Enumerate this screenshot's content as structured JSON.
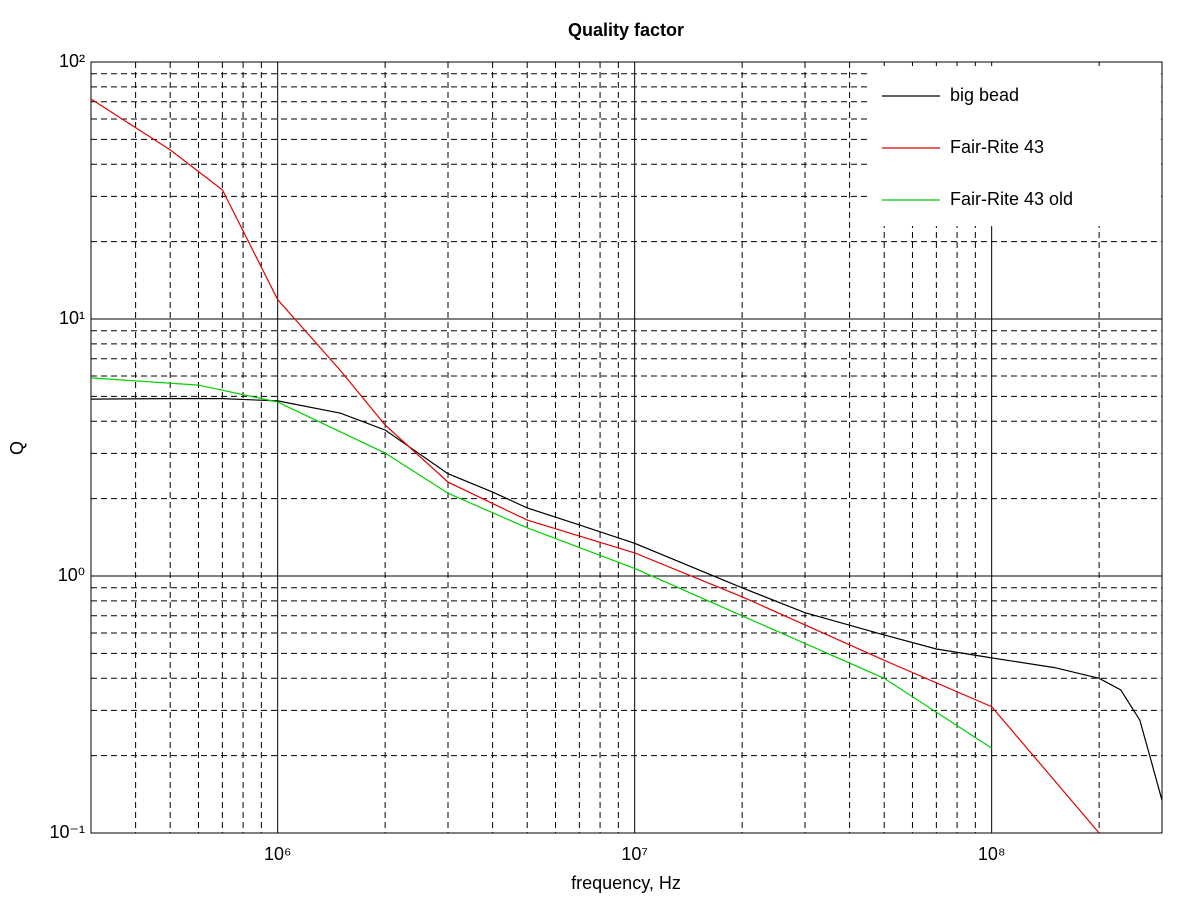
{
  "chart_data": {
    "type": "line",
    "title": "Quality factor",
    "x_label": "frequency, Hz",
    "y_label": "Q",
    "log_x": true,
    "log_y": true,
    "grid": true,
    "legend_position": "upper-right",
    "xlim": [
      300000,
      300000000
    ],
    "ylim": [
      0.1,
      100
    ],
    "xticks": [
      {
        "value": 1000000,
        "label": "10⁶"
      },
      {
        "value": 10000000,
        "label": "10⁷"
      },
      {
        "value": 100000000,
        "label": "10⁸"
      }
    ],
    "yticks": [
      {
        "value": 0.1,
        "label": "10⁻¹"
      },
      {
        "value": 1,
        "label": "10⁰"
      },
      {
        "value": 10,
        "label": "10¹"
      },
      {
        "value": 100,
        "label": "10²"
      }
    ],
    "x_minor_ticks": [
      400000,
      500000,
      600000,
      700000,
      800000,
      900000,
      2000000,
      3000000,
      4000000,
      5000000,
      6000000,
      7000000,
      8000000,
      9000000,
      20000000,
      30000000,
      40000000,
      50000000,
      60000000,
      70000000,
      80000000,
      90000000,
      200000000
    ],
    "y_minor_ticks": [
      0.2,
      0.3,
      0.4,
      0.5,
      0.6,
      0.7,
      0.8,
      0.9,
      2,
      3,
      4,
      5,
      6,
      7,
      8,
      9,
      20,
      30,
      40,
      50,
      60,
      70,
      80,
      90
    ],
    "series": [
      {
        "name": "big bead",
        "color": "#000000",
        "x": [
          300000,
          500000,
          700000,
          1000000,
          1500000,
          2000000,
          3000000,
          4000000,
          5000000,
          7000000,
          10000000,
          20000000,
          30000000,
          50000000,
          70000000,
          100000000,
          150000000,
          200000000,
          230000000,
          260000000,
          280000000,
          300000000
        ],
        "values": [
          4.88,
          4.9,
          4.9,
          4.8,
          4.3,
          3.7,
          2.5,
          2.12,
          1.84,
          1.58,
          1.34,
          0.9,
          0.72,
          0.59,
          0.52,
          0.48,
          0.44,
          0.4,
          0.36,
          0.275,
          0.19,
          0.134
        ]
      },
      {
        "name": "Fair-Rite 43",
        "color": "#e00000",
        "x": [
          300000,
          500000,
          700000,
          1000000,
          1500000,
          2000000,
          3000000,
          5000000,
          10000000,
          20000000,
          50000000,
          100000000,
          200000000
        ],
        "values": [
          71.8,
          45.5,
          31.8,
          11.9,
          6.3,
          3.87,
          2.32,
          1.65,
          1.23,
          0.83,
          0.47,
          0.31,
          0.1
        ]
      },
      {
        "name": "Fair-Rite 43 old",
        "color": "#00d000",
        "x": [
          300000,
          600000,
          1000000,
          2000000,
          3000000,
          5000000,
          10000000,
          20000000,
          50000000,
          100000000
        ],
        "values": [
          5.9,
          5.53,
          4.75,
          3.01,
          2.1,
          1.54,
          1.07,
          0.7,
          0.4,
          0.214
        ]
      }
    ]
  }
}
